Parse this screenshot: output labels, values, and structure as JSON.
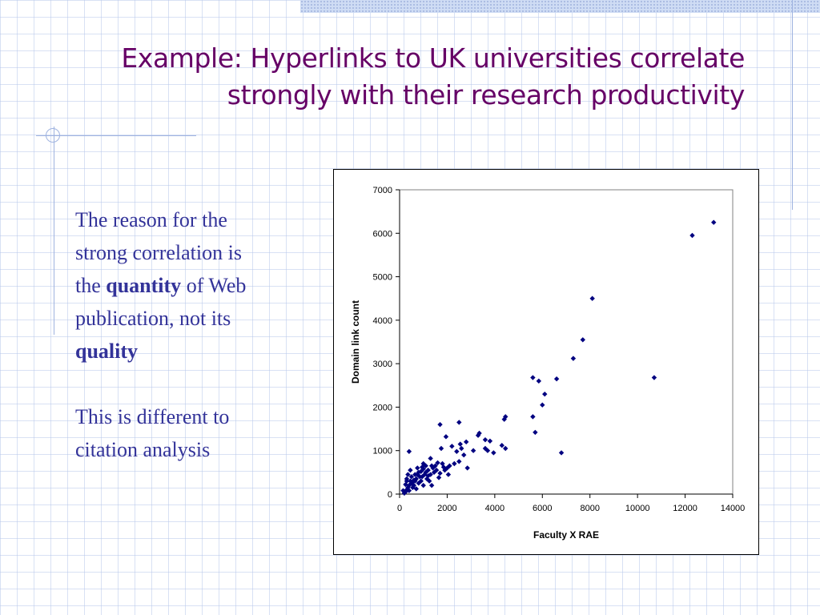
{
  "slide": {
    "title_line1": "Example: Hyperlinks to UK universities correlate",
    "title_line2": "strongly with their research productivity",
    "para1": {
      "line1": "The reason for the",
      "line2": "strong correlation is",
      "line3_pre": "the ",
      "line3_bold": "quantity",
      "line3_post": " of Web",
      "line4": "publication, not its",
      "line5_bold": "quality"
    },
    "para2": {
      "line1": "This is different to",
      "line2": "citation analysis"
    },
    "colors": {
      "title": "#660066",
      "body": "#333399",
      "marker": "#000080"
    }
  },
  "chart_data": {
    "type": "scatter",
    "title": "",
    "xlabel": "Faculty X RAE",
    "ylabel": "Domain link count",
    "xlim": [
      0,
      14000
    ],
    "ylim": [
      0,
      7000
    ],
    "x_ticks": [
      "0",
      "2000",
      "4000",
      "6000",
      "8000",
      "10000",
      "12000",
      "14000"
    ],
    "y_ticks": [
      "0",
      "1000",
      "2000",
      "3000",
      "4000",
      "5000",
      "6000",
      "7000"
    ],
    "grid": false,
    "legend": "none",
    "marker": "diamond",
    "points": [
      [
        13200,
        6250
      ],
      [
        12300,
        5950
      ],
      [
        8100,
        4500
      ],
      [
        7700,
        3550
      ],
      [
        7300,
        3120
      ],
      [
        10700,
        2680
      ],
      [
        6600,
        2650
      ],
      [
        5600,
        2680
      ],
      [
        5850,
        2600
      ],
      [
        6100,
        2300
      ],
      [
        6000,
        2050
      ],
      [
        5600,
        1780
      ],
      [
        5700,
        1420
      ],
      [
        6800,
        950
      ],
      [
        4450,
        1780
      ],
      [
        4400,
        1720
      ],
      [
        4300,
        1120
      ],
      [
        4450,
        1050
      ],
      [
        3950,
        950
      ],
      [
        3350,
        1400
      ],
      [
        3300,
        1350
      ],
      [
        3600,
        1250
      ],
      [
        3800,
        1220
      ],
      [
        3600,
        1050
      ],
      [
        3700,
        1000
      ],
      [
        2500,
        1650
      ],
      [
        1700,
        1600
      ],
      [
        1950,
        1320
      ],
      [
        2800,
        1200
      ],
      [
        2550,
        1150
      ],
      [
        2200,
        1100
      ],
      [
        2600,
        1050
      ],
      [
        2400,
        980
      ],
      [
        2700,
        900
      ],
      [
        2500,
        750
      ],
      [
        2850,
        600
      ],
      [
        2300,
        700
      ],
      [
        2100,
        650
      ],
      [
        1800,
        700
      ],
      [
        1600,
        720
      ],
      [
        1500,
        650
      ],
      [
        1300,
        820
      ],
      [
        1400,
        600
      ],
      [
        1200,
        550
      ],
      [
        1100,
        650
      ],
      [
        1000,
        580
      ],
      [
        900,
        520
      ],
      [
        850,
        400
      ],
      [
        750,
        450
      ],
      [
        700,
        350
      ],
      [
        650,
        300
      ],
      [
        550,
        280
      ],
      [
        450,
        300
      ],
      [
        400,
        200
      ],
      [
        350,
        150
      ],
      [
        300,
        100
      ],
      [
        250,
        50
      ],
      [
        200,
        20
      ],
      [
        150,
        80
      ],
      [
        400,
        980
      ],
      [
        450,
        550
      ],
      [
        500,
        400
      ],
      [
        600,
        200
      ],
      [
        800,
        250
      ],
      [
        950,
        400
      ],
      [
        1050,
        450
      ],
      [
        1150,
        350
      ],
      [
        1250,
        300
      ],
      [
        1350,
        200
      ],
      [
        1450,
        500
      ],
      [
        1700,
        480
      ],
      [
        1900,
        550
      ],
      [
        2000,
        600
      ],
      [
        1650,
        380
      ],
      [
        1550,
        550
      ],
      [
        1750,
        1050
      ],
      [
        300,
        350
      ],
      [
        350,
        450
      ],
      [
        550,
        150
      ],
      [
        700,
        120
      ],
      [
        900,
        300
      ],
      [
        1000,
        200
      ],
      [
        1200,
        420
      ],
      [
        1350,
        650
      ],
      [
        1100,
        500
      ],
      [
        950,
        620
      ],
      [
        2050,
        450
      ],
      [
        1850,
        620
      ],
      [
        500,
        250
      ],
      [
        650,
        450
      ],
      [
        800,
        500
      ],
      [
        1000,
        700
      ],
      [
        1300,
        450
      ],
      [
        250,
        220
      ],
      [
        400,
        80
      ],
      [
        600,
        320
      ],
      [
        750,
        600
      ],
      [
        300,
        300
      ],
      [
        3100,
        1000
      ]
    ]
  }
}
